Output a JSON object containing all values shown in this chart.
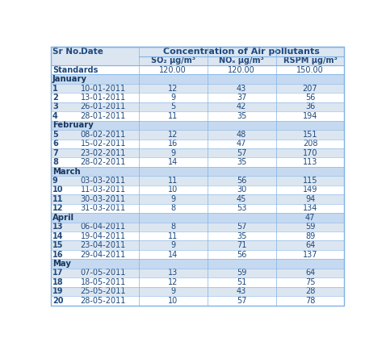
{
  "title": "Concentration of Air pollutants",
  "col_headers": [
    "Sr No.",
    "Date",
    "SO₂ μg/m³",
    "NOₓ μg/m³",
    "RSPM μg/m³"
  ],
  "standards_row": [
    "Standards",
    "",
    "120.00",
    "120.00",
    "150.00"
  ],
  "rows": [
    [
      "January",
      null,
      null,
      null,
      null
    ],
    [
      "1",
      "10-01-2011",
      "12",
      "43",
      "207"
    ],
    [
      "2",
      "13-01-2011",
      "9",
      "37",
      "56"
    ],
    [
      "3",
      "26-01-2011",
      "5",
      "42",
      "36"
    ],
    [
      "4",
      "28-01-2011",
      "11",
      "35",
      "194"
    ],
    [
      "February",
      null,
      null,
      null,
      null
    ],
    [
      "5",
      "08-02-2011",
      "12",
      "48",
      "151"
    ],
    [
      "6",
      "15-02-2011",
      "16",
      "47",
      "208"
    ],
    [
      "7",
      "23-02-2011",
      "9",
      "57",
      "170"
    ],
    [
      "8",
      "28-02-2011",
      "14",
      "35",
      "113"
    ],
    [
      "March",
      null,
      null,
      null,
      null
    ],
    [
      "9",
      "03-03-2011",
      "11",
      "56",
      "115"
    ],
    [
      "10",
      "11-03-2011",
      "10",
      "30",
      "149"
    ],
    [
      "11",
      "30-03-2011",
      "9",
      "45",
      "94"
    ],
    [
      "12",
      "31-03-2011",
      "8",
      "53",
      "134"
    ],
    [
      "April",
      null,
      null,
      null,
      "47"
    ],
    [
      "13",
      "06-04-2011",
      "8",
      "57",
      "59"
    ],
    [
      "14",
      "19-04-2011",
      "11",
      "35",
      "89"
    ],
    [
      "15",
      "23-04-2011",
      "9",
      "71",
      "64"
    ],
    [
      "16",
      "29-04-2011",
      "14",
      "56",
      "137"
    ],
    [
      "May",
      null,
      null,
      null,
      null
    ],
    [
      "17",
      "07-05-2011",
      "13",
      "59",
      "64"
    ],
    [
      "18",
      "18-05-2011",
      "12",
      "51",
      "75"
    ],
    [
      "19",
      "25-05-2011",
      "9",
      "43",
      "28"
    ],
    [
      "20",
      "28-05-2011",
      "10",
      "57",
      "78"
    ]
  ],
  "month_row_indices": [
    0,
    5,
    10,
    15,
    20
  ],
  "alt_row_color": "#dce6f1",
  "white_row_color": "#ffffff",
  "month_row_color": "#c5d9f1",
  "header_bg_color": "#dce6f1",
  "std_row_color": "#ffffff",
  "border_color": "#7fb2e5",
  "text_color": "#1f497d",
  "text_color_month": "#17375e",
  "figsize": [
    4.78,
    4.29
  ],
  "dpi": 100
}
